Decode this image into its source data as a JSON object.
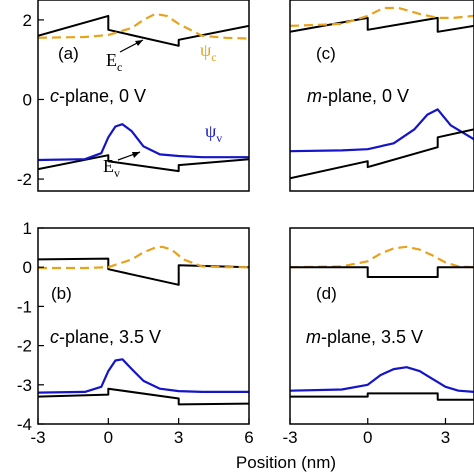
{
  "figure": {
    "xlabel": "Position (nm)",
    "colors": {
      "band": "#000000",
      "psi_v": "#1414c8",
      "psi_c": "#e8a21c",
      "frame": "#000000"
    }
  },
  "panels": {
    "a": {
      "label": "(a)",
      "plane": "c",
      "plane_suffix": "-plane, 0 V",
      "ann_Ec_main": "E",
      "ann_Ec_sub": "c",
      "ann_Ev_main": "E",
      "ann_Ev_sub": "v",
      "ann_psic_main": "ψ",
      "ann_psic_sub": "c",
      "ann_psiv_main": "ψ",
      "ann_psiv_sub": "v"
    },
    "b": {
      "label": "(b)",
      "plane": "c",
      "plane_suffix": "-plane, 3.5 V"
    },
    "c": {
      "label": "(c)",
      "plane": "m",
      "plane_suffix": "-plane, 0 V"
    },
    "d": {
      "label": "(d)",
      "plane": "m",
      "plane_suffix": "-plane, 3.5 V"
    }
  },
  "chart_data": [
    {
      "type": "line",
      "panel": "a",
      "xlim": [
        -3,
        6
      ],
      "ylim": [
        -2.3,
        2.5
      ],
      "yticks": [
        2,
        0,
        -2
      ],
      "ytick_labels": [
        "2",
        "0",
        "-2"
      ],
      "series": [
        {
          "role": "Ec",
          "style": "solid",
          "color": "#000000",
          "x": [
            -3,
            0,
            0,
            3,
            3,
            6
          ],
          "y": [
            1.6,
            2.1,
            1.75,
            1.35,
            1.5,
            1.85
          ]
        },
        {
          "role": "Ev",
          "style": "solid",
          "color": "#000000",
          "x": [
            -3,
            0,
            0,
            3,
            3,
            6
          ],
          "y": [
            -1.75,
            -1.4,
            -1.55,
            -1.8,
            -1.65,
            -1.5
          ]
        },
        {
          "role": "psi_c",
          "style": "dashed",
          "color": "#e8a21c",
          "x": [
            -3,
            -1,
            0,
            1,
            1.5,
            2,
            2.5,
            3,
            4,
            5,
            6
          ],
          "y": [
            1.55,
            1.57,
            1.62,
            1.8,
            2.0,
            2.15,
            2.1,
            1.9,
            1.6,
            1.55,
            1.53
          ]
        },
        {
          "role": "psi_v",
          "style": "solid",
          "color": "#1414c8",
          "x": [
            -3,
            -1,
            -0.3,
            0,
            0.3,
            0.6,
            1,
            1.5,
            2.2,
            3,
            4,
            6
          ],
          "y": [
            -1.52,
            -1.5,
            -1.35,
            -0.95,
            -0.68,
            -0.62,
            -0.8,
            -1.18,
            -1.38,
            -1.42,
            -1.45,
            -1.45
          ]
        }
      ]
    },
    {
      "type": "line",
      "panel": "b",
      "xlim": [
        -3,
        6
      ],
      "ylim": [
        -4,
        1
      ],
      "xticks": [
        -3,
        0,
        3,
        6
      ],
      "yticks": [
        1,
        0,
        -1,
        -2,
        -3,
        -4
      ],
      "ytick_labels": [
        "1",
        "0",
        "-1",
        "-2",
        "-3",
        "-4"
      ],
      "series": [
        {
          "role": "Ec",
          "style": "solid",
          "color": "#000000",
          "x": [
            -3,
            0,
            0,
            3,
            3,
            6
          ],
          "y": [
            0.2,
            0.22,
            -0.05,
            -0.45,
            0.05,
            0.0
          ]
        },
        {
          "role": "psi_c",
          "style": "dashed",
          "color": "#e8a21c",
          "x": [
            -3,
            -1,
            0,
            1,
            1.5,
            2,
            2.3,
            2.7,
            3.2,
            4,
            5,
            6
          ],
          "y": [
            -0.02,
            -0.02,
            0.0,
            0.2,
            0.38,
            0.5,
            0.52,
            0.45,
            0.2,
            0.02,
            0.0,
            0.0
          ]
        },
        {
          "role": "psi_v",
          "style": "solid",
          "color": "#1414c8",
          "x": [
            -3,
            -1,
            -0.3,
            0,
            0.3,
            0.6,
            1,
            1.5,
            2.2,
            3,
            4,
            6
          ],
          "y": [
            -3.2,
            -3.18,
            -3.05,
            -2.65,
            -2.38,
            -2.35,
            -2.6,
            -2.9,
            -3.1,
            -3.16,
            -3.18,
            -3.18
          ]
        },
        {
          "role": "Ev",
          "style": "solid",
          "color": "#000000",
          "x": [
            -3,
            0,
            0,
            3,
            3,
            6
          ],
          "y": [
            -3.3,
            -3.25,
            -3.1,
            -3.35,
            -3.5,
            -3.48
          ]
        }
      ]
    },
    {
      "type": "line",
      "panel": "c",
      "xlim": [
        -3,
        4.1
      ],
      "ylim": [
        -2.3,
        2.5
      ],
      "series": [
        {
          "role": "Ec",
          "style": "solid",
          "color": "#000000",
          "x": [
            -3,
            0,
            0,
            2.7,
            2.7,
            4.1
          ],
          "y": [
            1.7,
            2.05,
            1.75,
            2.05,
            1.7,
            1.85
          ]
        },
        {
          "role": "psi_c",
          "style": "dashed",
          "color": "#e8a21c",
          "x": [
            -3,
            -1,
            0,
            0.6,
            1.2,
            2,
            2.7,
            3.3,
            4.1
          ],
          "y": [
            1.85,
            1.9,
            2.1,
            2.3,
            2.3,
            2.15,
            2.05,
            2.05,
            2.1
          ]
        },
        {
          "role": "psi_v",
          "style": "solid",
          "color": "#1414c8",
          "x": [
            -3,
            -1,
            0,
            1,
            1.8,
            2.3,
            2.7,
            3.2,
            4.1
          ],
          "y": [
            -1.3,
            -1.28,
            -1.25,
            -1.1,
            -0.75,
            -0.38,
            -0.25,
            -0.65,
            -1.0
          ]
        },
        {
          "role": "Ev",
          "style": "solid",
          "color": "#000000",
          "x": [
            -3,
            0,
            0,
            2.7,
            2.7,
            4.1
          ],
          "y": [
            -1.98,
            -1.55,
            -1.7,
            -1.2,
            -0.95,
            -0.75
          ]
        }
      ]
    },
    {
      "type": "line",
      "panel": "d",
      "xlim": [
        -3,
        4.1
      ],
      "ylim": [
        -4,
        1
      ],
      "xticks": [
        -3,
        0,
        3
      ],
      "series": [
        {
          "role": "psi_c",
          "style": "dashed",
          "color": "#e8a21c",
          "x": [
            -3,
            -1,
            0,
            0.5,
            1,
            1.5,
            2,
            2.5,
            3,
            3.5,
            4.1
          ],
          "y": [
            0.0,
            0.02,
            0.15,
            0.35,
            0.48,
            0.52,
            0.45,
            0.3,
            0.12,
            0.02,
            0.0
          ]
        },
        {
          "role": "Ec",
          "style": "solid",
          "color": "#000000",
          "x": [
            -3,
            0,
            0,
            2.7,
            2.7,
            4.1
          ],
          "y": [
            0.0,
            0.0,
            -0.25,
            -0.25,
            0.0,
            0.0
          ]
        },
        {
          "role": "psi_v",
          "style": "solid",
          "color": "#1414c8",
          "x": [
            -3,
            -1,
            0,
            0.5,
            1,
            1.5,
            2,
            2.5,
            3,
            3.5,
            4.1
          ],
          "y": [
            -3.15,
            -3.12,
            -3.0,
            -2.75,
            -2.6,
            -2.55,
            -2.65,
            -2.85,
            -3.05,
            -3.15,
            -3.18
          ]
        },
        {
          "role": "Ev",
          "style": "solid",
          "color": "#000000",
          "x": [
            -3,
            0,
            0,
            2.7,
            2.7,
            4.1
          ],
          "y": [
            -3.3,
            -3.3,
            -3.22,
            -3.22,
            -3.38,
            -3.38
          ]
        }
      ]
    }
  ]
}
